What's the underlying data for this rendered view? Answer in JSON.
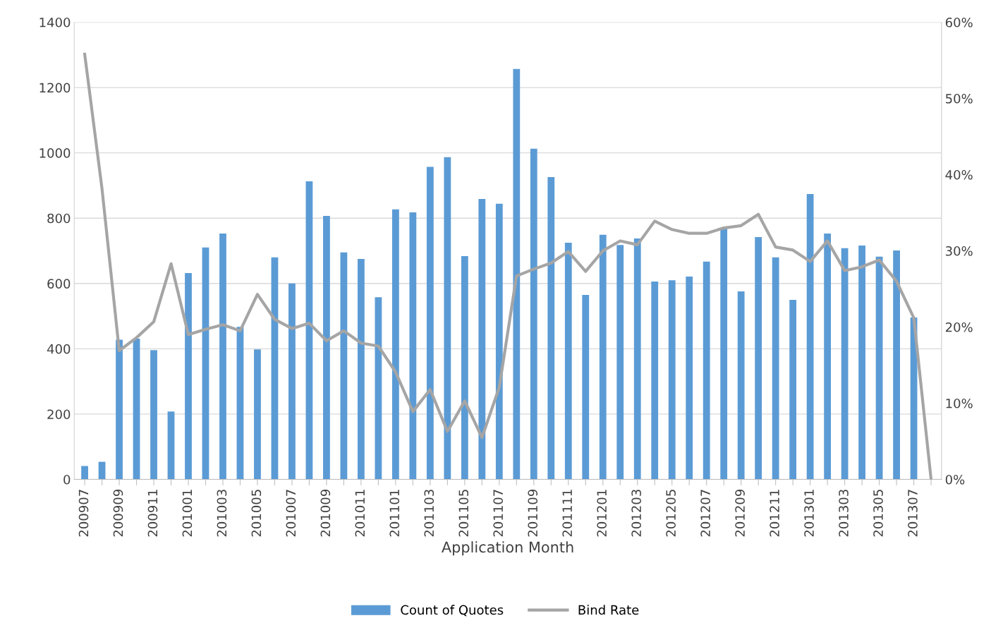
{
  "chart_data": {
    "type": "bar",
    "xlabel": "Application Month",
    "categories": [
      "200907",
      null,
      "200909",
      null,
      "200911",
      null,
      "201001",
      null,
      "201003",
      null,
      "201005",
      null,
      "201007",
      null,
      "201009",
      null,
      "201011",
      null,
      "201101",
      null,
      "201103",
      null,
      "201105",
      null,
      "201107",
      null,
      "201109",
      null,
      "201111",
      null,
      "201201",
      null,
      "201203",
      null,
      "201205",
      null,
      "201207",
      null,
      "201209",
      null,
      "201211",
      null,
      "201301",
      null,
      "201303",
      null,
      "201305",
      null,
      "201307",
      null
    ],
    "series": [
      {
        "name": "Count of Quotes",
        "color": "#5b9bd5",
        "values": [
          41,
          54,
          428,
          431,
          396,
          208,
          632,
          710,
          753,
          467,
          398,
          680,
          600,
          913,
          807,
          695,
          675,
          558,
          827,
          818,
          957,
          987,
          684,
          859,
          844,
          1257,
          1013,
          926,
          725,
          565,
          749,
          718,
          738,
          606,
          610,
          621,
          667,
          768,
          576,
          742,
          680,
          550,
          874,
          753,
          708,
          716,
          682,
          701,
          496,
          0
        ]
      },
      {
        "name": "Bind Rate",
        "type": "line",
        "axis": "y2",
        "color": "#a5a5a5",
        "values": [
          55.8,
          38.2,
          16.9,
          18.6,
          20.7,
          28.3,
          19.0,
          19.7,
          20.3,
          19.5,
          24.3,
          21.0,
          19.8,
          20.5,
          18.2,
          19.5,
          17.9,
          17.5,
          14.1,
          8.9,
          11.8,
          6.3,
          10.3,
          5.5,
          12.1,
          26.7,
          27.6,
          28.4,
          29.9,
          27.3,
          30.0,
          31.3,
          30.8,
          33.9,
          32.8,
          32.3,
          32.3,
          33.0,
          33.3,
          34.8,
          30.5,
          30.1,
          28.6,
          31.3,
          27.4,
          27.9,
          28.8,
          26.0,
          21.2,
          0
        ]
      }
    ],
    "ylim": [
      0,
      1400
    ],
    "yticks": [
      0,
      200,
      400,
      600,
      800,
      1000,
      1200,
      1400
    ],
    "y2lim": [
      0,
      60
    ],
    "y2ticks": [
      {
        "value": 0,
        "label": "0%"
      },
      {
        "value": 10,
        "label": "10%"
      },
      {
        "value": 20,
        "label": "20%"
      },
      {
        "value": 30,
        "label": "30%"
      },
      {
        "value": 40,
        "label": "40%"
      },
      {
        "value": 50,
        "label": "50%"
      },
      {
        "value": 60,
        "label": "60%"
      }
    ],
    "grid": "y",
    "legend": "bottom",
    "line_style": "solid",
    "marker": "none"
  }
}
